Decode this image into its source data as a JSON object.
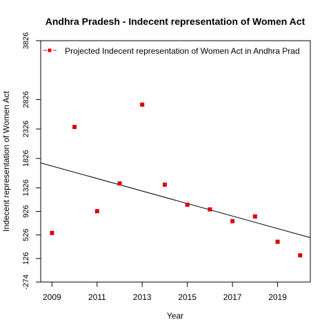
{
  "chart_data": {
    "type": "scatter",
    "title": "Andhra Pradesh  -  Indecent representation of Women Act",
    "xlabel": "Year",
    "ylabel": "Indecent representation of Women Act",
    "x_ticks": [
      "2009",
      "2011",
      "2013",
      "2015",
      "2017",
      "2019"
    ],
    "y_ticks": [
      "-274",
      "126",
      "526",
      "926",
      "1326",
      "1826",
      "2326",
      "2826",
      "3826"
    ],
    "xlim": [
      2008.5,
      2020.45
    ],
    "ylim": [
      -274,
      3826
    ],
    "legend": {
      "placement": "top-left",
      "label": "Projected  Indecent representation of Women Act  in  Andhra Prad"
    },
    "series": [
      {
        "name": "Projected  Indecent representation of Women Act  in  Andhra Prad",
        "color": "#dd0000",
        "points": [
          {
            "x": 2009,
            "y": 560
          },
          {
            "x": 2010,
            "y": 2360
          },
          {
            "x": 2011,
            "y": 930
          },
          {
            "x": 2012,
            "y": 1400
          },
          {
            "x": 2013,
            "y": 2740
          },
          {
            "x": 2014,
            "y": 1380
          },
          {
            "x": 2015,
            "y": 1040
          },
          {
            "x": 2016,
            "y": 960
          },
          {
            "x": 2017,
            "y": 760
          },
          {
            "x": 2018,
            "y": 840
          },
          {
            "x": 2019,
            "y": 410
          },
          {
            "x": 2020,
            "y": 180
          }
        ]
      }
    ],
    "trend_line": {
      "color": "#000000",
      "start": {
        "x": 2008.5,
        "y": 1750
      },
      "end": {
        "x": 2020.45,
        "y": 480
      }
    }
  }
}
